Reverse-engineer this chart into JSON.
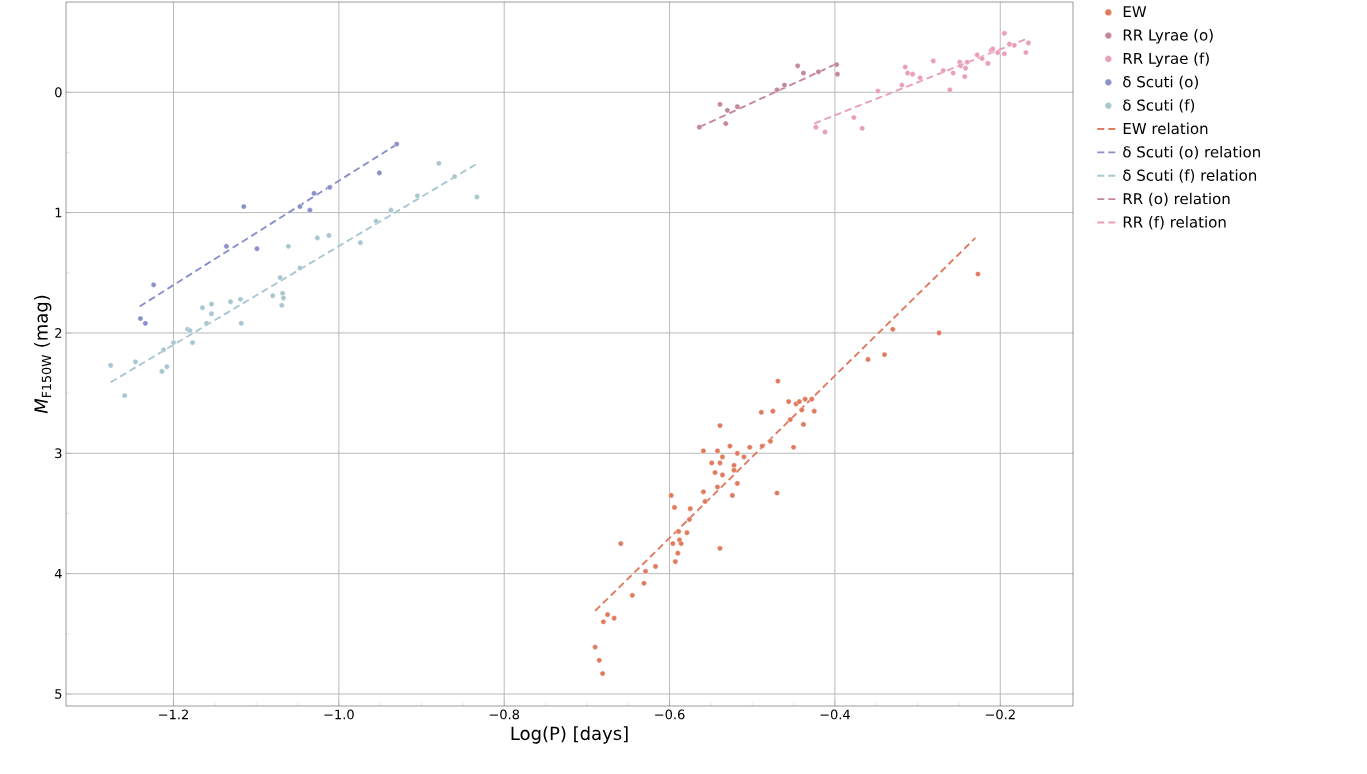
{
  "chart_data": {
    "type": "scatter",
    "xlabel": "Log(P) [days]",
    "ylabel": "*M*$_{F150W}$ (mag)",
    "xlim": [
      -1.33,
      -0.112
    ],
    "ylim": [
      5.1,
      -0.75
    ],
    "xticks": [
      {
        "value": -1.2,
        "label": "−1.2"
      },
      {
        "value": -1.0,
        "label": "−1.0"
      },
      {
        "value": -0.8,
        "label": "−0.8"
      },
      {
        "value": -0.6,
        "label": "−0.6"
      },
      {
        "value": -0.4,
        "label": "−0.4"
      },
      {
        "value": -0.2,
        "label": "−0.2"
      }
    ],
    "yticks": [
      0,
      1,
      2,
      3,
      4,
      5
    ],
    "grid": true,
    "legend": "right",
    "marker": "circle",
    "series": [
      {
        "name": "EW",
        "color": "#e07b5f",
        "x": [
          -0.469,
          -0.456,
          -0.447,
          -0.443,
          -0.436,
          -0.428,
          -0.44,
          -0.425,
          -0.454,
          -0.438,
          -0.489,
          -0.475,
          -0.45,
          -0.478,
          -0.488,
          -0.539,
          -0.559,
          -0.542,
          -0.527,
          -0.518,
          -0.51,
          -0.503,
          -0.536,
          -0.549,
          -0.539,
          -0.522,
          -0.522,
          -0.545,
          -0.536,
          -0.518,
          -0.542,
          -0.524,
          -0.559,
          -0.557,
          -0.47,
          -0.598,
          -0.594,
          -0.575,
          -0.576,
          -0.579,
          -0.589,
          -0.588,
          -0.586,
          -0.596,
          -0.539,
          -0.59,
          -0.593,
          -0.659,
          -0.617,
          -0.629,
          -0.631,
          -0.645,
          -0.675,
          -0.68,
          -0.667,
          -0.69,
          -0.685,
          -0.681,
          -0.227,
          -0.274,
          -0.33,
          -0.34,
          -0.36
        ],
        "values": [
          2.4,
          2.57,
          2.59,
          2.57,
          2.55,
          2.55,
          2.64,
          2.65,
          2.72,
          2.76,
          2.66,
          2.65,
          2.95,
          2.9,
          2.94,
          2.77,
          2.98,
          2.98,
          2.94,
          3.0,
          3.03,
          2.95,
          3.03,
          3.08,
          3.08,
          3.1,
          3.14,
          3.16,
          3.18,
          3.25,
          3.28,
          3.35,
          3.32,
          3.4,
          3.33,
          3.35,
          3.45,
          3.46,
          3.55,
          3.66,
          3.65,
          3.72,
          3.75,
          3.75,
          3.79,
          3.83,
          3.9,
          3.75,
          3.94,
          3.98,
          4.08,
          4.18,
          4.34,
          4.4,
          4.37,
          4.61,
          4.72,
          4.83,
          1.51,
          2.0,
          1.97,
          2.18,
          2.22
        ]
      },
      {
        "name": "RR Lyrae (o)",
        "color": "#c4879f",
        "x": [
          -0.564,
          -0.539,
          -0.532,
          -0.53,
          -0.518,
          -0.47,
          -0.461,
          -0.445,
          -0.438,
          -0.42,
          -0.398,
          -0.397
        ],
        "values": [
          0.29,
          0.1,
          0.26,
          0.15,
          0.12,
          -0.02,
          -0.06,
          -0.22,
          -0.16,
          -0.17,
          -0.23,
          -0.15
        ]
      },
      {
        "name": "RR Lyrae (f)",
        "color": "#e99fb6",
        "x": [
          -0.423,
          -0.412,
          -0.377,
          -0.367,
          -0.348,
          -0.319,
          -0.315,
          -0.312,
          -0.306,
          -0.297,
          -0.281,
          -0.269,
          -0.261,
          -0.257,
          -0.249,
          -0.248,
          -0.243,
          -0.24,
          -0.228,
          -0.222,
          -0.215,
          -0.211,
          -0.209,
          -0.203,
          -0.195,
          -0.195,
          -0.189,
          -0.183,
          -0.169,
          -0.166,
          -0.242
        ],
        "values": [
          0.29,
          0.33,
          0.21,
          0.3,
          -0.01,
          -0.06,
          -0.21,
          -0.16,
          -0.15,
          -0.12,
          -0.26,
          -0.18,
          -0.02,
          -0.16,
          -0.25,
          -0.22,
          -0.13,
          -0.25,
          -0.31,
          -0.28,
          -0.24,
          -0.35,
          -0.36,
          -0.33,
          -0.32,
          -0.49,
          -0.4,
          -0.39,
          -0.33,
          -0.41,
          -0.2
        ]
      },
      {
        "name": "δ Scuti (o)",
        "color": "#8a90c9",
        "x": [
          -1.24,
          -1.234,
          -1.224,
          -1.136,
          -1.115,
          -1.099,
          -1.047,
          -1.035,
          -1.03,
          -1.011,
          -0.951,
          -0.93
        ],
        "values": [
          1.88,
          1.92,
          1.6,
          1.28,
          0.95,
          1.3,
          0.95,
          0.98,
          0.84,
          0.79,
          0.67,
          0.43
        ]
      },
      {
        "name": "δ Scuti (f)",
        "color": "#a9c7d0",
        "x": [
          -1.276,
          -1.259,
          -1.246,
          -1.214,
          -1.208,
          -1.212,
          -1.2,
          -1.183,
          -1.18,
          -1.177,
          -1.165,
          -1.154,
          -1.154,
          -1.16,
          -1.131,
          -1.119,
          -1.118,
          -1.08,
          -1.071,
          -1.068,
          -1.067,
          -1.069,
          -1.061,
          -1.047,
          -1.026,
          -1.012,
          -0.974,
          -0.955,
          -0.937,
          -0.905,
          -0.879,
          -0.86,
          -0.833
        ],
        "values": [
          2.27,
          2.52,
          2.24,
          2.32,
          2.28,
          2.14,
          2.08,
          1.97,
          1.98,
          2.08,
          1.79,
          1.76,
          1.84,
          1.92,
          1.74,
          1.72,
          1.92,
          1.69,
          1.54,
          1.67,
          1.71,
          1.77,
          1.28,
          1.46,
          1.21,
          1.19,
          1.25,
          1.07,
          0.98,
          0.86,
          0.59,
          0.7,
          0.87
        ]
      },
      {
        "name": "EW relation",
        "type": "line",
        "marker": "none",
        "line_style": "dashed",
        "color": "#e07b5f",
        "x": [
          -0.69,
          -0.23
        ],
        "values": [
          4.31,
          1.21
        ]
      },
      {
        "name": "δ Scuti (o) relation",
        "type": "line",
        "marker": "none",
        "line_style": "dashed",
        "color": "#8a90c9",
        "x": [
          -1.241,
          -0.927
        ],
        "values": [
          1.78,
          0.42
        ]
      },
      {
        "name": "δ Scuti (f) relation",
        "type": "line",
        "marker": "none",
        "line_style": "dashed",
        "color": "#a9c7d0",
        "x": [
          -1.276,
          -0.832
        ],
        "values": [
          2.41,
          0.59
        ]
      },
      {
        "name": "RR (o) relation",
        "type": "line",
        "marker": "none",
        "line_style": "dashed",
        "color": "#c4879f",
        "x": [
          -0.564,
          -0.397
        ],
        "values": [
          0.29,
          -0.24
        ]
      },
      {
        "name": "RR (f) relation",
        "type": "line",
        "marker": "none",
        "line_style": "dashed",
        "color": "#e99fb6",
        "x": [
          -0.425,
          -0.166
        ],
        "values": [
          0.26,
          -0.45
        ]
      }
    ]
  }
}
